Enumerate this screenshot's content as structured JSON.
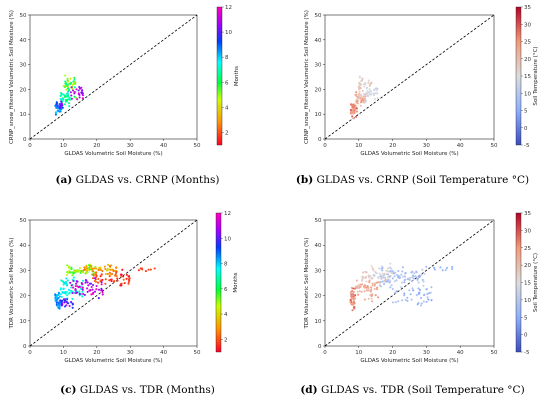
{
  "chart_data": [
    {
      "type": "scatter",
      "panel": "a",
      "caption_letter": "(a)",
      "caption_text": "GLDAS vs. CRNP (Months)",
      "xlabel": "GLDAS Volumetric Soil Moisture (%)",
      "ylabel": "CRNP_snow_filtered Volumetric Soil Moisture (%)",
      "xlim": [
        0,
        50
      ],
      "ylim": [
        0,
        50
      ],
      "xticks": [
        "0",
        "10",
        "20",
        "30",
        "40",
        "50"
      ],
      "yticks": [
        "0",
        "10",
        "20",
        "30",
        "40",
        "50"
      ],
      "reference_line": "1:1 dashed",
      "colorbar": {
        "label": "Months",
        "colormap": "gist_rainbow",
        "range": [
          1,
          12
        ],
        "ticks": [
          "2",
          "4",
          "6",
          "8",
          "10",
          "12"
        ]
      },
      "clusters": [
        {
          "x": [
            7.5,
            9.5
          ],
          "y": [
            9,
            16
          ],
          "c": [
            8,
            9
          ],
          "n": 40
        },
        {
          "x": [
            9,
            12
          ],
          "y": [
            12,
            20
          ],
          "c": [
            6,
            8
          ],
          "n": 35
        },
        {
          "x": [
            10,
            14
          ],
          "y": [
            16,
            28
          ],
          "c": [
            4,
            7
          ],
          "n": 40
        },
        {
          "x": [
            12,
            16
          ],
          "y": [
            14,
            22
          ],
          "c": [
            10,
            12
          ],
          "n": 25
        },
        {
          "x": [
            8,
            10
          ],
          "y": [
            12,
            16
          ],
          "c": [
            9,
            11
          ],
          "n": 15
        }
      ]
    },
    {
      "type": "scatter",
      "panel": "b",
      "caption_letter": "(b)",
      "caption_text": "GLDAS vs. CRNP (Soil Temperature °C)",
      "xlabel": "GLDAS Volumetric Soil Moisture (%)",
      "ylabel": "CRNP_snow_filtered Volumetric Soil Moisture (%)",
      "xlim": [
        0,
        50
      ],
      "ylim": [
        0,
        50
      ],
      "xticks": [
        "0",
        "10",
        "20",
        "30",
        "40",
        "50"
      ],
      "yticks": [
        "0",
        "10",
        "20",
        "30",
        "40",
        "50"
      ],
      "reference_line": "1:1 dashed",
      "colorbar": {
        "label": "Soil Temperature (°C)",
        "colormap": "coolwarm",
        "range": [
          -5,
          35
        ],
        "ticks": [
          "-5",
          "0",
          "5",
          "10",
          "15",
          "20",
          "25",
          "30",
          "35"
        ]
      },
      "clusters": [
        {
          "x": [
            7.5,
            9.5
          ],
          "y": [
            8,
            16
          ],
          "c": [
            22,
            30
          ],
          "n": 40
        },
        {
          "x": [
            9,
            12
          ],
          "y": [
            12,
            20
          ],
          "c": [
            18,
            26
          ],
          "n": 35
        },
        {
          "x": [
            10,
            14
          ],
          "y": [
            15,
            28
          ],
          "c": [
            14,
            20
          ],
          "n": 40
        },
        {
          "x": [
            12,
            16
          ],
          "y": [
            14,
            22
          ],
          "c": [
            10,
            16
          ],
          "n": 25
        }
      ]
    },
    {
      "type": "scatter",
      "panel": "c",
      "caption_letter": "(c)",
      "caption_text": "GLDAS vs. TDR (Months)",
      "xlabel": "GLDAS Volumetric Soil Moisture (%)",
      "ylabel": "TDR Volumetric Soil Moisture (%)",
      "xlim": [
        0,
        50
      ],
      "ylim": [
        0,
        50
      ],
      "xticks": [
        "0",
        "10",
        "20",
        "30",
        "40",
        "50"
      ],
      "yticks": [
        "0",
        "10",
        "20",
        "30",
        "40",
        "50"
      ],
      "reference_line": "1:1 dashed",
      "colorbar": {
        "label": "Months",
        "colormap": "gist_rainbow",
        "range": [
          1,
          12
        ],
        "ticks": [
          "2",
          "4",
          "6",
          "8",
          "10",
          "12"
        ]
      },
      "clusters": [
        {
          "x": [
            7.5,
            9
          ],
          "y": [
            13,
            24
          ],
          "c": [
            8,
            9
          ],
          "n": 40
        },
        {
          "x": [
            9,
            16
          ],
          "y": [
            17,
            28
          ],
          "c": [
            7,
            8
          ],
          "n": 60
        },
        {
          "x": [
            11,
            20
          ],
          "y": [
            27,
            33
          ],
          "c": [
            4,
            6
          ],
          "n": 60
        },
        {
          "x": [
            16,
            26
          ],
          "y": [
            27,
            33
          ],
          "c": [
            2,
            4
          ],
          "n": 55
        },
        {
          "x": [
            18,
            30
          ],
          "y": [
            22,
            31
          ],
          "c": [
            1,
            2.5
          ],
          "n": 55
        },
        {
          "x": [
            12,
            22
          ],
          "y": [
            18,
            28
          ],
          "c": [
            10,
            12
          ],
          "n": 55
        },
        {
          "x": [
            9,
            13
          ],
          "y": [
            14,
            20
          ],
          "c": [
            9,
            11
          ],
          "n": 25
        },
        {
          "x": [
            32,
            38
          ],
          "y": [
            29,
            32
          ],
          "c": [
            1,
            2
          ],
          "n": 8
        }
      ]
    },
    {
      "type": "scatter",
      "panel": "d",
      "caption_letter": "(d)",
      "caption_text": "GLDAS vs. TDR (Soil Temperature °C)",
      "xlabel": "GLDAS Volumetric Soil Moisture (%)",
      "ylabel": "TDR Volumetric Soil Moisture (%)",
      "xlim": [
        0,
        50
      ],
      "ylim": [
        0,
        50
      ],
      "xticks": [
        "0",
        "10",
        "20",
        "30",
        "40",
        "50"
      ],
      "yticks": [
        "0",
        "10",
        "20",
        "30",
        "40",
        "50"
      ],
      "reference_line": "1:1 dashed",
      "colorbar": {
        "label": "Soil Temperature (°C)",
        "colormap": "coolwarm",
        "range": [
          -5,
          35
        ],
        "ticks": [
          "-5",
          "0",
          "5",
          "10",
          "15",
          "20",
          "25",
          "30",
          "35"
        ]
      },
      "clusters": [
        {
          "x": [
            7.5,
            9
          ],
          "y": [
            13,
            24
          ],
          "c": [
            22,
            30
          ],
          "n": 40
        },
        {
          "x": [
            9,
            16
          ],
          "y": [
            17,
            28
          ],
          "c": [
            18,
            26
          ],
          "n": 60
        },
        {
          "x": [
            11,
            20
          ],
          "y": [
            24,
            33
          ],
          "c": [
            12,
            20
          ],
          "n": 60
        },
        {
          "x": [
            16,
            30
          ],
          "y": [
            22,
            33
          ],
          "c": [
            6,
            12
          ],
          "n": 80
        },
        {
          "x": [
            20,
            32
          ],
          "y": [
            14,
            26
          ],
          "c": [
            4,
            10
          ],
          "n": 40
        },
        {
          "x": [
            32,
            38
          ],
          "y": [
            29,
            32
          ],
          "c": [
            5,
            8
          ],
          "n": 8
        }
      ]
    }
  ]
}
